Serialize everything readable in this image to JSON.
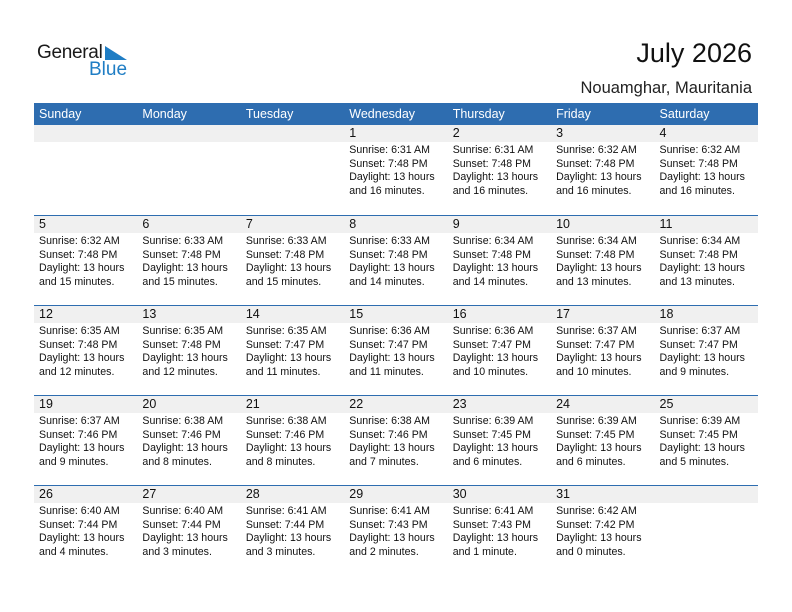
{
  "logo": {
    "general": "General",
    "blue": "Blue"
  },
  "header": {
    "title": "July 2026",
    "location": "Nouamghar, Mauritania"
  },
  "colors": {
    "accent": "#2e6db0",
    "logo_blue": "#1f7dc4",
    "date_band": "#f0f0f0"
  },
  "weekdays": [
    "Sunday",
    "Monday",
    "Tuesday",
    "Wednesday",
    "Thursday",
    "Friday",
    "Saturday"
  ],
  "weeks": [
    [
      null,
      null,
      null,
      {
        "day": "1",
        "sunrise": "Sunrise: 6:31 AM",
        "sunset": "Sunset: 7:48 PM",
        "daylight": "Daylight: 13 hours",
        "minutes": "and 16 minutes."
      },
      {
        "day": "2",
        "sunrise": "Sunrise: 6:31 AM",
        "sunset": "Sunset: 7:48 PM",
        "daylight": "Daylight: 13 hours",
        "minutes": "and 16 minutes."
      },
      {
        "day": "3",
        "sunrise": "Sunrise: 6:32 AM",
        "sunset": "Sunset: 7:48 PM",
        "daylight": "Daylight: 13 hours",
        "minutes": "and 16 minutes."
      },
      {
        "day": "4",
        "sunrise": "Sunrise: 6:32 AM",
        "sunset": "Sunset: 7:48 PM",
        "daylight": "Daylight: 13 hours",
        "minutes": "and 16 minutes."
      }
    ],
    [
      {
        "day": "5",
        "sunrise": "Sunrise: 6:32 AM",
        "sunset": "Sunset: 7:48 PM",
        "daylight": "Daylight: 13 hours",
        "minutes": "and 15 minutes."
      },
      {
        "day": "6",
        "sunrise": "Sunrise: 6:33 AM",
        "sunset": "Sunset: 7:48 PM",
        "daylight": "Daylight: 13 hours",
        "minutes": "and 15 minutes."
      },
      {
        "day": "7",
        "sunrise": "Sunrise: 6:33 AM",
        "sunset": "Sunset: 7:48 PM",
        "daylight": "Daylight: 13 hours",
        "minutes": "and 15 minutes."
      },
      {
        "day": "8",
        "sunrise": "Sunrise: 6:33 AM",
        "sunset": "Sunset: 7:48 PM",
        "daylight": "Daylight: 13 hours",
        "minutes": "and 14 minutes."
      },
      {
        "day": "9",
        "sunrise": "Sunrise: 6:34 AM",
        "sunset": "Sunset: 7:48 PM",
        "daylight": "Daylight: 13 hours",
        "minutes": "and 14 minutes."
      },
      {
        "day": "10",
        "sunrise": "Sunrise: 6:34 AM",
        "sunset": "Sunset: 7:48 PM",
        "daylight": "Daylight: 13 hours",
        "minutes": "and 13 minutes."
      },
      {
        "day": "11",
        "sunrise": "Sunrise: 6:34 AM",
        "sunset": "Sunset: 7:48 PM",
        "daylight": "Daylight: 13 hours",
        "minutes": "and 13 minutes."
      }
    ],
    [
      {
        "day": "12",
        "sunrise": "Sunrise: 6:35 AM",
        "sunset": "Sunset: 7:48 PM",
        "daylight": "Daylight: 13 hours",
        "minutes": "and 12 minutes."
      },
      {
        "day": "13",
        "sunrise": "Sunrise: 6:35 AM",
        "sunset": "Sunset: 7:48 PM",
        "daylight": "Daylight: 13 hours",
        "minutes": "and 12 minutes."
      },
      {
        "day": "14",
        "sunrise": "Sunrise: 6:35 AM",
        "sunset": "Sunset: 7:47 PM",
        "daylight": "Daylight: 13 hours",
        "minutes": "and 11 minutes."
      },
      {
        "day": "15",
        "sunrise": "Sunrise: 6:36 AM",
        "sunset": "Sunset: 7:47 PM",
        "daylight": "Daylight: 13 hours",
        "minutes": "and 11 minutes."
      },
      {
        "day": "16",
        "sunrise": "Sunrise: 6:36 AM",
        "sunset": "Sunset: 7:47 PM",
        "daylight": "Daylight: 13 hours",
        "minutes": "and 10 minutes."
      },
      {
        "day": "17",
        "sunrise": "Sunrise: 6:37 AM",
        "sunset": "Sunset: 7:47 PM",
        "daylight": "Daylight: 13 hours",
        "minutes": "and 10 minutes."
      },
      {
        "day": "18",
        "sunrise": "Sunrise: 6:37 AM",
        "sunset": "Sunset: 7:47 PM",
        "daylight": "Daylight: 13 hours",
        "minutes": "and 9 minutes."
      }
    ],
    [
      {
        "day": "19",
        "sunrise": "Sunrise: 6:37 AM",
        "sunset": "Sunset: 7:46 PM",
        "daylight": "Daylight: 13 hours",
        "minutes": "and 9 minutes."
      },
      {
        "day": "20",
        "sunrise": "Sunrise: 6:38 AM",
        "sunset": "Sunset: 7:46 PM",
        "daylight": "Daylight: 13 hours",
        "minutes": "and 8 minutes."
      },
      {
        "day": "21",
        "sunrise": "Sunrise: 6:38 AM",
        "sunset": "Sunset: 7:46 PM",
        "daylight": "Daylight: 13 hours",
        "minutes": "and 8 minutes."
      },
      {
        "day": "22",
        "sunrise": "Sunrise: 6:38 AM",
        "sunset": "Sunset: 7:46 PM",
        "daylight": "Daylight: 13 hours",
        "minutes": "and 7 minutes."
      },
      {
        "day": "23",
        "sunrise": "Sunrise: 6:39 AM",
        "sunset": "Sunset: 7:45 PM",
        "daylight": "Daylight: 13 hours",
        "minutes": "and 6 minutes."
      },
      {
        "day": "24",
        "sunrise": "Sunrise: 6:39 AM",
        "sunset": "Sunset: 7:45 PM",
        "daylight": "Daylight: 13 hours",
        "minutes": "and 6 minutes."
      },
      {
        "day": "25",
        "sunrise": "Sunrise: 6:39 AM",
        "sunset": "Sunset: 7:45 PM",
        "daylight": "Daylight: 13 hours",
        "minutes": "and 5 minutes."
      }
    ],
    [
      {
        "day": "26",
        "sunrise": "Sunrise: 6:40 AM",
        "sunset": "Sunset: 7:44 PM",
        "daylight": "Daylight: 13 hours",
        "minutes": "and 4 minutes."
      },
      {
        "day": "27",
        "sunrise": "Sunrise: 6:40 AM",
        "sunset": "Sunset: 7:44 PM",
        "daylight": "Daylight: 13 hours",
        "minutes": "and 3 minutes."
      },
      {
        "day": "28",
        "sunrise": "Sunrise: 6:41 AM",
        "sunset": "Sunset: 7:44 PM",
        "daylight": "Daylight: 13 hours",
        "minutes": "and 3 minutes."
      },
      {
        "day": "29",
        "sunrise": "Sunrise: 6:41 AM",
        "sunset": "Sunset: 7:43 PM",
        "daylight": "Daylight: 13 hours",
        "minutes": "and 2 minutes."
      },
      {
        "day": "30",
        "sunrise": "Sunrise: 6:41 AM",
        "sunset": "Sunset: 7:43 PM",
        "daylight": "Daylight: 13 hours",
        "minutes": "and 1 minute."
      },
      {
        "day": "31",
        "sunrise": "Sunrise: 6:42 AM",
        "sunset": "Sunset: 7:42 PM",
        "daylight": "Daylight: 13 hours",
        "minutes": "and 0 minutes."
      },
      null
    ]
  ]
}
